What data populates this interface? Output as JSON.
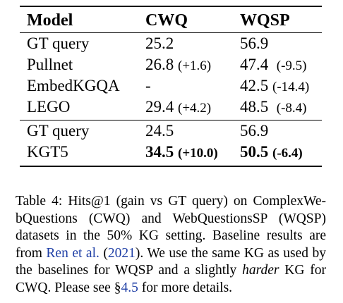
{
  "table": {
    "headers": [
      "Model",
      "CWQ",
      "WQSP"
    ],
    "group1": [
      {
        "model": "GT query",
        "cwq": "25.2",
        "cwq_gain": "",
        "wqsp": "56.9",
        "wqsp_gain": ""
      },
      {
        "model": "Pullnet",
        "cwq": "26.8",
        "cwq_gain": "(+1.6)",
        "wqsp": "47.4",
        "wqsp_gain": "(-9.5)"
      },
      {
        "model": "EmbedKGQA",
        "cwq": "-",
        "cwq_gain": "",
        "wqsp": "42.5",
        "wqsp_gain": "(-14.4)"
      },
      {
        "model": "LEGO",
        "cwq": "29.4",
        "cwq_gain": "(+4.2)",
        "wqsp": "48.5",
        "wqsp_gain": "(-8.4)"
      }
    ],
    "group2": [
      {
        "model": "GT query",
        "cwq": "24.5",
        "cwq_gain": "",
        "wqsp": "56.9",
        "wqsp_gain": ""
      },
      {
        "model": "KGT5",
        "cwq": "34.5",
        "cwq_gain": "(+10.0)",
        "wqsp": "50.5",
        "wqsp_gain": "(-6.4)"
      }
    ]
  },
  "caption": {
    "line1": "Table 4:  Hits@1 (gain vs GT query) on ComplexWe-",
    "line2": "bQuestions (CWQ) and WebQuestionsSP (WQSP)",
    "line3": "datasets in the 50% KG setting.  Baseline results are",
    "line4_a": "from ",
    "line4_link": "Ren et al.",
    "line4_b": " (",
    "line4_year": "2021",
    "line4_c": "). We use the same KG as used by",
    "line5": "the baselines for WQSP and a slightly ",
    "line5_em": "harder",
    "line5_b": " KG for",
    "line6_a": "CWQ. Please see §",
    "line6_link": "4.5",
    "line6_b": " for more details."
  },
  "colors": {
    "link": "#1f3fa6"
  }
}
